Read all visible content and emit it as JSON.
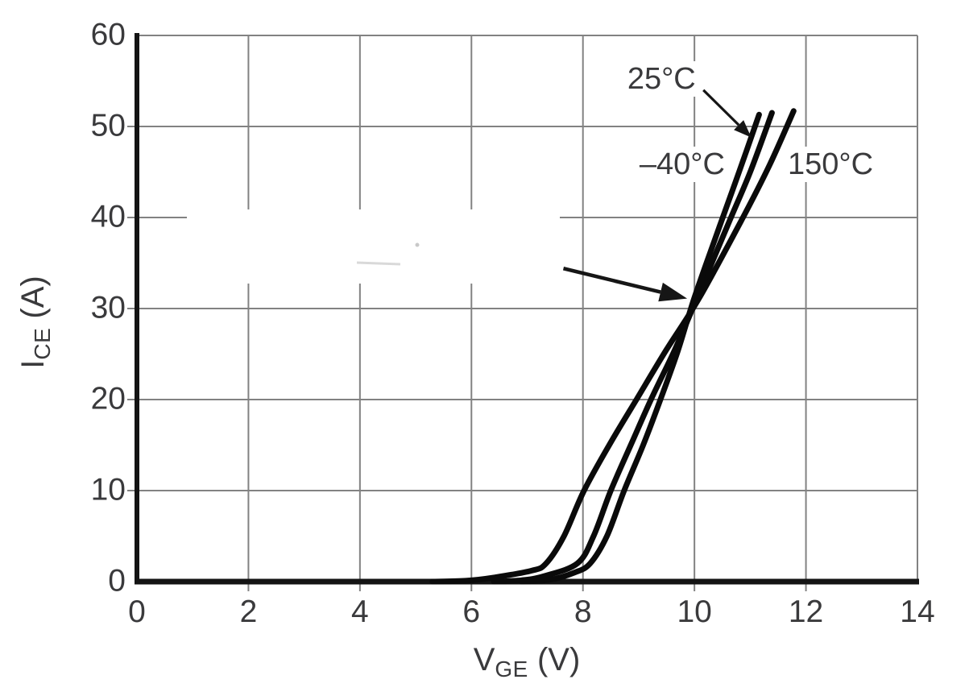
{
  "chart_data": {
    "type": "line",
    "title": "",
    "xlabel": {
      "symbol": "V",
      "subscript": "GE",
      "unit": "(V)"
    },
    "ylabel": {
      "symbol": "I",
      "subscript": "CE",
      "unit": "(A)"
    },
    "xlim": [
      0,
      14
    ],
    "ylim": [
      0,
      60
    ],
    "x_ticks": [
      0,
      2,
      4,
      6,
      8,
      10,
      12,
      14
    ],
    "y_ticks": [
      0,
      10,
      20,
      30,
      40,
      50,
      60
    ],
    "grid": true,
    "legend_position": "inline-annotations",
    "series": [
      {
        "name": "150°C",
        "points": [
          [
            5.3,
            0
          ],
          [
            5.9,
            0.1
          ],
          [
            6.4,
            0.45
          ],
          [
            7.08,
            1.2
          ],
          [
            7.34,
            2
          ],
          [
            7.66,
            5
          ],
          [
            8.02,
            10
          ],
          [
            8.5,
            15.3
          ],
          [
            8.96,
            20
          ],
          [
            9.5,
            25.5
          ],
          [
            10.09,
            31.2
          ],
          [
            10.87,
            40
          ],
          [
            11.35,
            45.8
          ],
          [
            11.78,
            51.7
          ]
        ]
      },
      {
        "name": "25°C",
        "points": [
          [
            6.4,
            0
          ],
          [
            6.9,
            0.15
          ],
          [
            7.3,
            0.6
          ],
          [
            7.9,
            2
          ],
          [
            8.19,
            5
          ],
          [
            8.5,
            10
          ],
          [
            8.88,
            15.3
          ],
          [
            9.22,
            20
          ],
          [
            9.65,
            25.5
          ],
          [
            10.05,
            31.2
          ],
          [
            10.62,
            39.5
          ],
          [
            11.0,
            45
          ],
          [
            11.39,
            51.5
          ]
        ]
      },
      {
        "name": "-40°C",
        "points": [
          [
            6.9,
            0
          ],
          [
            7.4,
            0.2
          ],
          [
            7.85,
            1
          ],
          [
            8.13,
            2
          ],
          [
            8.43,
            5
          ],
          [
            8.74,
            10
          ],
          [
            9.08,
            15
          ],
          [
            9.39,
            20
          ],
          [
            9.7,
            25.3
          ],
          [
            10.0,
            31.2
          ],
          [
            10.42,
            38.5
          ],
          [
            10.8,
            45
          ],
          [
            11.16,
            51.3
          ]
        ]
      }
    ],
    "crossover_point": {
      "v_ge": 10,
      "i_ce": 31
    },
    "annotations": [
      {
        "text": "25°C",
        "v_ge": 9.41,
        "i_ce": 55.2
      },
      {
        "text": "–40°C",
        "v_ge": 9.78,
        "i_ce": 45.8
      },
      {
        "text": "150°C",
        "v_ge": 12.44,
        "i_ce": 45.8
      }
    ],
    "arrows": [
      {
        "name": "label-25c-pointer-arrow",
        "from": [
          10.16,
          54.0
        ],
        "to": [
          11.02,
          48.8
        ],
        "head_len": 22,
        "head_w": 17,
        "stroke_w": 3.2
      },
      {
        "name": "crossover-pointer-arrow",
        "from": [
          7.65,
          34.4
        ],
        "to": [
          9.87,
          31.1
        ],
        "head_len": 34,
        "head_w": 24,
        "stroke_w": 4.6
      }
    ]
  },
  "colors": {
    "curve": "#0a0a0a",
    "grid": "#828282",
    "axis": "#141414",
    "text": "#3a3a3c",
    "background": "#ffffff",
    "arrow": "#161616"
  }
}
